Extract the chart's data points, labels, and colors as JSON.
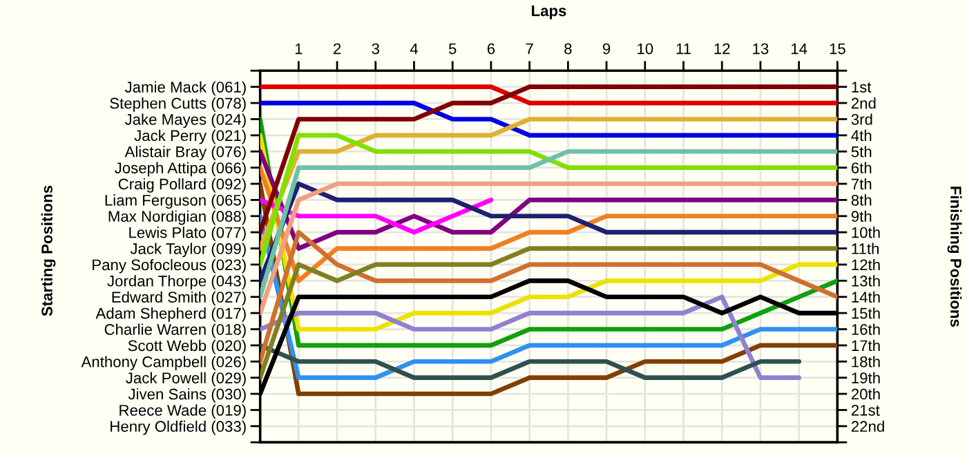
{
  "chart_data": {
    "type": "line",
    "xlabel": "Laps",
    "annotations": [
      "Starting Positions"
    ],
    "y2label": "Finishing Positions",
    "x": [
      0,
      1,
      2,
      3,
      4,
      5,
      6,
      7,
      8,
      9,
      10,
      11,
      12,
      13,
      14,
      15
    ],
    "xlim": [
      0,
      15
    ],
    "xticks": [
      1,
      2,
      3,
      4,
      5,
      6,
      7,
      8,
      9,
      10,
      11,
      12,
      13,
      14,
      15
    ],
    "y_categories": [
      "Jamie Mack (061)",
      "Stephen Cutts (078)",
      "Jake Mayes (024)",
      "Jack Perry (021)",
      "Alistair Bray (076)",
      "Joseph Attipa (066)",
      "Craig Pollard (092)",
      "Liam Ferguson (065)",
      "Max Nordigian (088)",
      "Lewis Plato (077)",
      "Jack Taylor (099)",
      "Pany Sofocleous (023)",
      "Jordan Thorpe (043)",
      "Edward Smith (027)",
      "Adam Shepherd (017)",
      "Charlie Warren (018)",
      "Scott Webb (020)",
      "Anthony Campbell (026)",
      "Jack Powell (029)",
      "Jiven Sains (030)",
      "Reece Wade (019)",
      "Henry Oldfield (033)"
    ],
    "y2lim": [
      23,
      0
    ],
    "y2ticks": [
      {
        "value": 0,
        "label": null
      },
      {
        "value": 1,
        "label": "1st"
      },
      {
        "value": 2,
        "label": "2nd"
      },
      {
        "value": 3,
        "label": "3rd"
      },
      {
        "value": 4,
        "label": "4th"
      },
      {
        "value": 5,
        "label": "5th"
      },
      {
        "value": 6,
        "label": "6th"
      },
      {
        "value": 7,
        "label": "7th"
      },
      {
        "value": 8,
        "label": "8th"
      },
      {
        "value": 9,
        "label": "9th"
      },
      {
        "value": 10,
        "label": "10th"
      },
      {
        "value": 11,
        "label": "11th"
      },
      {
        "value": 12,
        "label": "12th"
      },
      {
        "value": 13,
        "label": "13th"
      },
      {
        "value": 14,
        "label": "14th"
      },
      {
        "value": 15,
        "label": "15th"
      },
      {
        "value": 16,
        "label": "16th"
      },
      {
        "value": 17,
        "label": "17th"
      },
      {
        "value": 18,
        "label": "18th"
      },
      {
        "value": 19,
        "label": "19th"
      },
      {
        "value": 20,
        "label": "20th"
      },
      {
        "value": 21,
        "label": "21st"
      },
      {
        "value": 22,
        "label": "22nd"
      },
      {
        "value": 23,
        "label": null
      }
    ],
    "grid": true,
    "legend": false,
    "line_style": "solid",
    "series": [
      {
        "axis": "y2",
        "color": "#e00000",
        "values": [
          1,
          1,
          1,
          1,
          1,
          1,
          1,
          2,
          2,
          2,
          2,
          2,
          2,
          2,
          2,
          2
        ]
      },
      {
        "axis": "y2",
        "color": "#0000e0",
        "values": [
          2,
          2,
          2,
          2,
          2,
          3,
          3,
          4,
          4,
          4,
          4,
          4,
          4,
          4,
          4,
          4
        ]
      },
      {
        "axis": "y2",
        "color": "#10a010",
        "values": [
          3,
          17,
          17,
          17,
          17,
          17,
          17,
          16,
          16,
          16,
          16,
          16,
          16,
          15,
          14,
          13
        ]
      },
      {
        "axis": "y2",
        "color": "#f0e000",
        "values": [
          4,
          16,
          16,
          16,
          15,
          15,
          15,
          14,
          14,
          13,
          13,
          13,
          13,
          13,
          12,
          12
        ]
      },
      {
        "axis": "y2",
        "color": "#800080",
        "values": [
          5,
          11,
          10,
          10,
          9,
          10,
          10,
          8,
          8,
          8,
          8,
          8,
          8,
          8,
          8,
          8
        ]
      },
      {
        "axis": "y2",
        "color": "#f08020",
        "values": [
          6,
          13,
          11,
          11,
          11,
          11,
          11,
          10,
          10,
          9,
          9,
          9,
          9,
          9,
          9,
          9
        ]
      },
      {
        "axis": "y2",
        "color": "#804000",
        "values": [
          7,
          20,
          20,
          20,
          20,
          20,
          20,
          19,
          19,
          19,
          18,
          18,
          18,
          17,
          17,
          17
        ]
      },
      {
        "axis": "y2",
        "color": "#ff00ff",
        "values": [
          8,
          9,
          9,
          9,
          10,
          9,
          8,
          null,
          null,
          null,
          null,
          null,
          null,
          null,
          null,
          null
        ]
      },
      {
        "axis": "y2",
        "color": "#3090f0",
        "values": [
          9,
          19,
          19,
          19,
          18,
          18,
          18,
          17,
          17,
          17,
          17,
          17,
          17,
          16,
          16,
          16
        ]
      },
      {
        "axis": "y2",
        "color": "#800000",
        "values": [
          10,
          3,
          3,
          3,
          3,
          2,
          2,
          1,
          1,
          1,
          1,
          1,
          1,
          1,
          1,
          1
        ]
      },
      {
        "axis": "y2",
        "color": "#e0b030",
        "values": [
          11,
          5,
          5,
          4,
          4,
          4,
          4,
          3,
          3,
          3,
          3,
          3,
          3,
          3,
          3,
          3
        ]
      },
      {
        "axis": "y2",
        "color": "#80e000",
        "values": [
          12,
          4,
          4,
          5,
          5,
          5,
          5,
          5,
          6,
          6,
          6,
          6,
          6,
          6,
          6,
          6
        ]
      },
      {
        "axis": "y2",
        "color": "#202070",
        "values": [
          13,
          7,
          8,
          8,
          8,
          8,
          9,
          9,
          9,
          10,
          10,
          10,
          10,
          10,
          10,
          10
        ]
      },
      {
        "axis": "y2",
        "color": "#70c0a8",
        "values": [
          14,
          6,
          6,
          6,
          6,
          6,
          6,
          6,
          5,
          5,
          5,
          5,
          5,
          5,
          5,
          5
        ]
      },
      {
        "axis": "y2",
        "color": "#f0a080",
        "values": [
          15,
          8,
          7,
          7,
          7,
          7,
          7,
          7,
          7,
          7,
          7,
          7,
          7,
          7,
          7,
          7
        ]
      },
      {
        "axis": "y2",
        "color": "#9080d0",
        "values": [
          16,
          15,
          15,
          15,
          16,
          16,
          16,
          15,
          15,
          15,
          15,
          15,
          14,
          19,
          19,
          null
        ]
      },
      {
        "axis": "y2",
        "color": "#305050",
        "values": [
          17,
          18,
          18,
          18,
          19,
          19,
          19,
          18,
          18,
          18,
          19,
          19,
          19,
          18,
          18,
          null
        ]
      },
      {
        "axis": "y2",
        "color": "#d07030",
        "values": [
          18,
          10,
          12,
          13,
          13,
          13,
          13,
          12,
          12,
          12,
          12,
          12,
          12,
          12,
          13,
          14
        ]
      },
      {
        "axis": "y2",
        "color": "#808020",
        "values": [
          19,
          12,
          13,
          12,
          12,
          12,
          12,
          11,
          11,
          11,
          11,
          11,
          11,
          11,
          11,
          11
        ]
      },
      {
        "axis": "y2",
        "color": "#000000",
        "values": [
          20,
          14,
          14,
          14,
          14,
          14,
          14,
          13,
          13,
          14,
          14,
          14,
          15,
          14,
          15,
          15
        ]
      }
    ]
  }
}
